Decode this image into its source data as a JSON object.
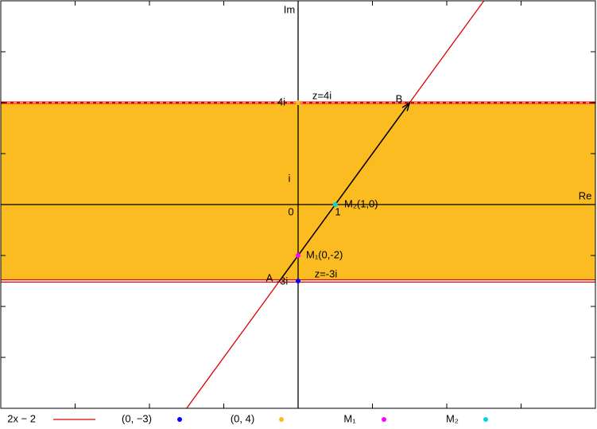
{
  "chart_data": {
    "type": "line",
    "xlim": [
      -8,
      8
    ],
    "ylim": [
      -8,
      8
    ],
    "xticks": [
      -8,
      -6,
      -4,
      -2,
      0,
      2,
      4,
      6,
      8
    ],
    "yticks": [
      -8,
      -6,
      -4,
      -2,
      0,
      2,
      4,
      6,
      8
    ],
    "band": {
      "from": -3,
      "to": 4,
      "color": "#fbbc22"
    },
    "hlines": [
      {
        "y": 4,
        "color": "#e00000",
        "style": "dashed"
      },
      {
        "y": -3,
        "color": "#e00000",
        "style": "double"
      }
    ],
    "arrow": {
      "x": [
        -0.5,
        3
      ],
      "y": [
        -3,
        4
      ],
      "color": "#000000"
    },
    "series": [
      {
        "name": "2x − 2",
        "type": "line",
        "color": "#e00000",
        "x": [
          -3,
          5
        ],
        "values": [
          -8,
          8
        ]
      },
      {
        "name": "(0, −3)",
        "type": "scatter",
        "color": "#0000ff",
        "x": [
          0
        ],
        "values": [
          -3
        ]
      },
      {
        "name": "(0, 4)",
        "type": "scatter",
        "color": "#fbbc22",
        "x": [
          0
        ],
        "values": [
          4
        ]
      },
      {
        "name": "M₁",
        "type": "scatter",
        "color": "#ff00ff",
        "x": [
          0
        ],
        "values": [
          -2
        ]
      },
      {
        "name": "M₂",
        "type": "scatter",
        "color": "#00d8d8",
        "x": [
          1
        ],
        "values": [
          0
        ]
      }
    ],
    "labels": [
      "Im",
      "Re",
      "0",
      "1",
      "i",
      "4i",
      "-3i",
      "z=4i",
      "z=-3i",
      "A",
      "B",
      "M₁(0,-2)",
      "M₂(1,0)"
    ]
  }
}
